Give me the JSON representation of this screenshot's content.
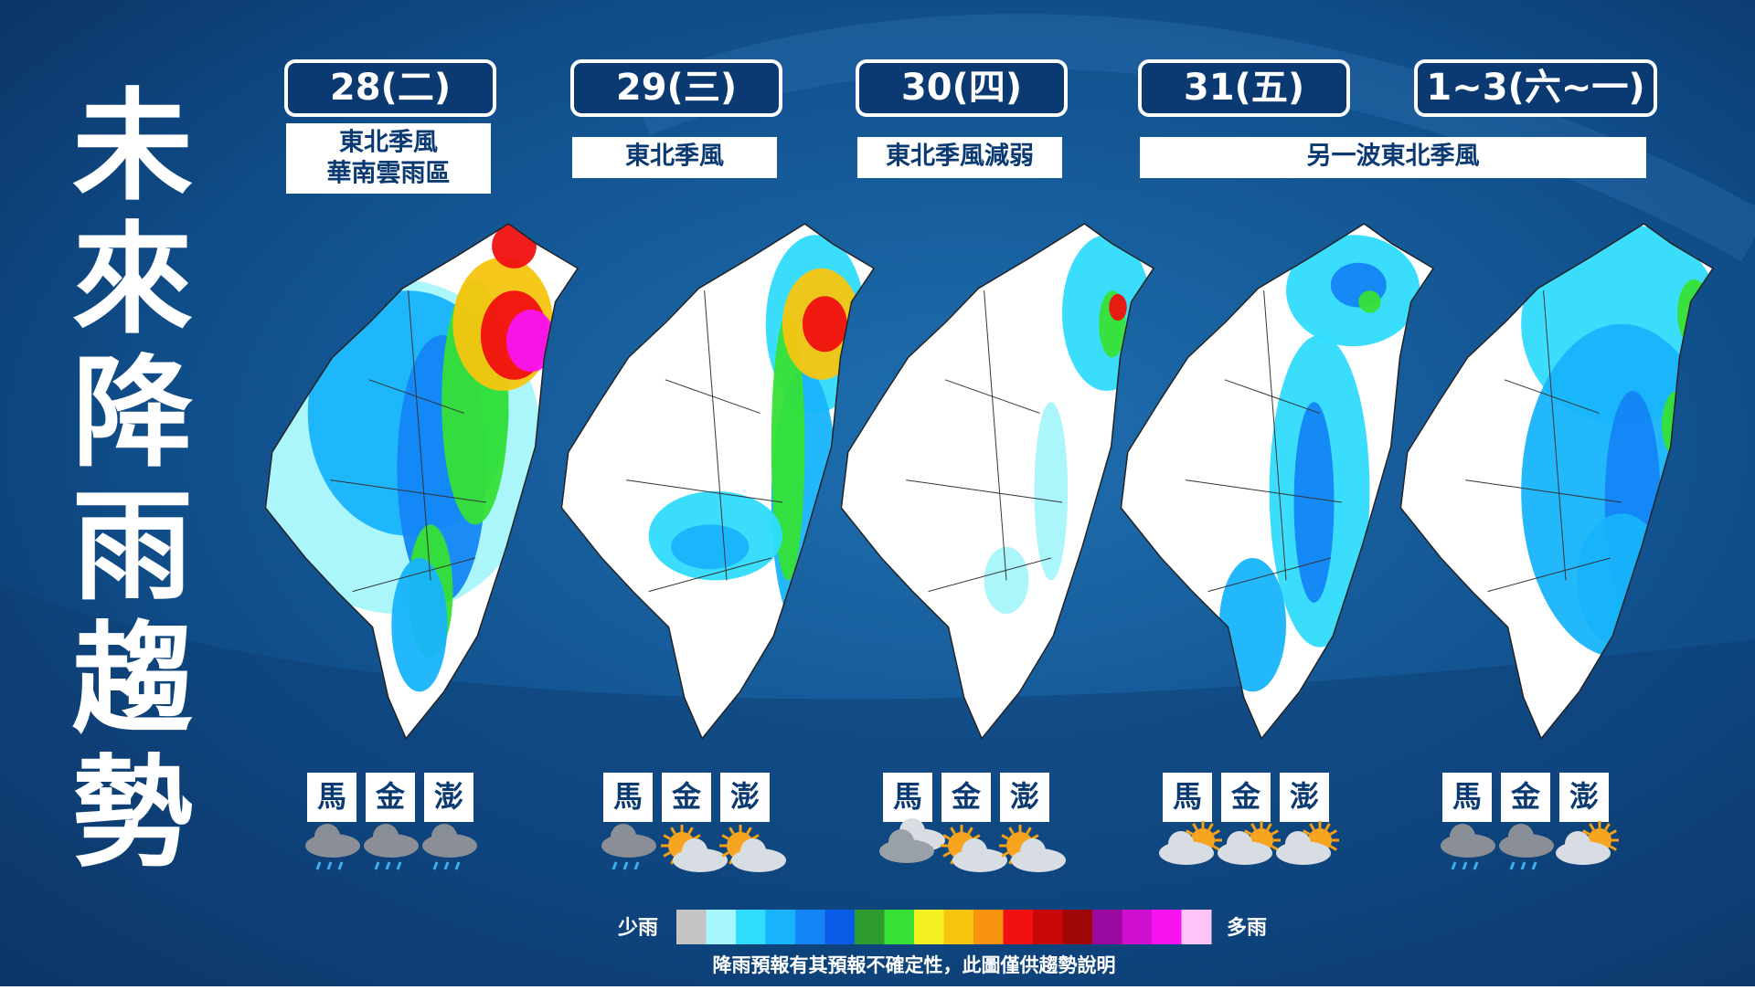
{
  "title": "未來降雨趨勢",
  "days": [
    {
      "date": "28(二)",
      "description": [
        "東北季風",
        "華南雲雨區"
      ],
      "islands": [
        "馬",
        "金",
        "澎"
      ],
      "icons": [
        "rain",
        "rain",
        "rain"
      ]
    },
    {
      "date": "29(三)",
      "description": [
        "東北季風"
      ],
      "islands": [
        "馬",
        "金",
        "澎"
      ],
      "icons": [
        "rain",
        "sun",
        "sun"
      ]
    },
    {
      "date": "30(四)",
      "description": [
        "東北季風減弱"
      ],
      "islands": [
        "馬",
        "金",
        "澎"
      ],
      "icons": [
        "cloud",
        "sun",
        "sun"
      ]
    },
    {
      "date": "31(五)",
      "description": [
        "另一波東北季風"
      ],
      "islands": [
        "馬",
        "金",
        "澎"
      ],
      "icons": [
        "partly",
        "partly",
        "partly"
      ]
    },
    {
      "date": "1~3(六~一)",
      "islands": [
        "馬",
        "金",
        "澎"
      ],
      "icons": [
        "rain",
        "rain",
        "partly"
      ]
    }
  ],
  "legend": {
    "low": "少雨",
    "high": "多雨",
    "colors": [
      "#c4c4c4",
      "#a6f6fb",
      "#2fdcfc",
      "#17b3fb",
      "#1385f5",
      "#0a5ce8",
      "#2e9b2e",
      "#36e036",
      "#f3f220",
      "#f7c510",
      "#f79310",
      "#f01010",
      "#c80808",
      "#a00606",
      "#9a0aa0",
      "#cf10cf",
      "#f814f0",
      "#ffc4f8"
    ]
  },
  "note": "降雨預報有其預報不確定性，此圖僅供趨勢說明"
}
